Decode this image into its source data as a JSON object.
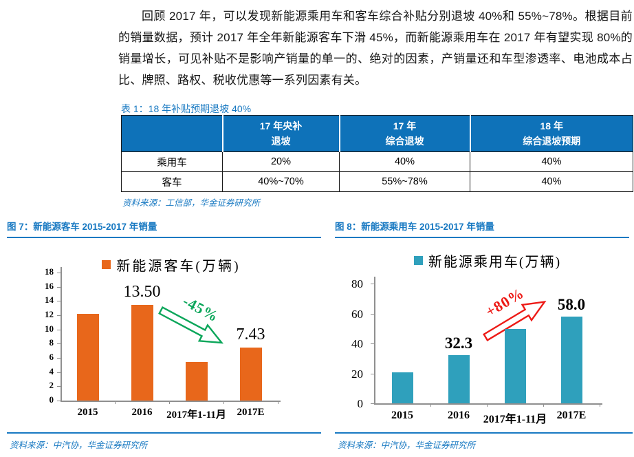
{
  "paragraph": "回顾 2017 年，可以发现新能源乘用车和客车综合补贴分别退坡 40%和 55%~78%。根据目前的销量数据，预计 2017 年全年新能源客车下滑 45%，而新能源乘用车在 2017 年有望实现 80%的销量增长，可见补贴不是影响产销量的单一的、绝对的因素，产销量还和车型渗透率、电池成本占比、牌照、路权、税收优惠等一系列因素有关。",
  "table": {
    "title": "表 1：18 年补贴预期退坡 40%",
    "headers": [
      [
        "",
        ""
      ],
      [
        "17 年央补",
        "退坡"
      ],
      [
        "17 年",
        "综合退坡"
      ],
      [
        "18 年",
        "综合退坡预期"
      ]
    ],
    "rows": [
      [
        "乘用车",
        "20%",
        "40%",
        "40%"
      ],
      [
        "客车",
        "40%~70%",
        "55%~78%",
        "40%"
      ]
    ],
    "source": "资料来源：工信部，华金证券研究所"
  },
  "figures": {
    "fig7_source": "资料来源：中汽协，华金证券研究所",
    "fig8_source": "资料来源：中汽协，华金证券研究所"
  },
  "colors": {
    "accent_blue": "#1879C2",
    "table_header_bg": "#0E72B9",
    "bus_orange": "#E8671B",
    "pv_teal": "#2FA0BC",
    "down_green": "#0BA65A",
    "up_red": "#ED1A16"
  },
  "chart_data": [
    {
      "type": "bar",
      "title": "图 7：新能源客车 2015-2017 年销量",
      "legend": "新能源客车(万辆)",
      "categories": [
        "2015",
        "2016",
        "2017年1-11月",
        "2017E"
      ],
      "values": [
        12.2,
        13.5,
        5.4,
        7.43
      ],
      "bar_labels": [
        "",
        "13.50",
        "",
        "7.43"
      ],
      "ylim": [
        0,
        18
      ],
      "ytick_step": 2,
      "bar_color": "#E8671B",
      "grid": false,
      "legend_position": "top",
      "annotation": {
        "text": "-45%",
        "color": "#0BA65A",
        "direction": "down"
      },
      "source": "资料来源：中汽协，华金证券研究所"
    },
    {
      "type": "bar",
      "title": "图 8：新能源乘用车 2015-2017 年销量",
      "legend": "新能源乘用车(万辆)",
      "categories": [
        "2015",
        "2016",
        "2017年1-11月",
        "2017E"
      ],
      "values": [
        20.5,
        32.3,
        49.5,
        58.0
      ],
      "bar_labels": [
        "",
        "32.3",
        "",
        "58.0"
      ],
      "ylim": [
        0,
        80
      ],
      "ytick_step": 20,
      "bar_color": "#2FA0BC",
      "grid": false,
      "legend_position": "top",
      "annotation": {
        "text": "+80%",
        "color": "#ED1A16",
        "direction": "up"
      },
      "source": "资料来源：中汽协，华金证券研究所"
    }
  ]
}
